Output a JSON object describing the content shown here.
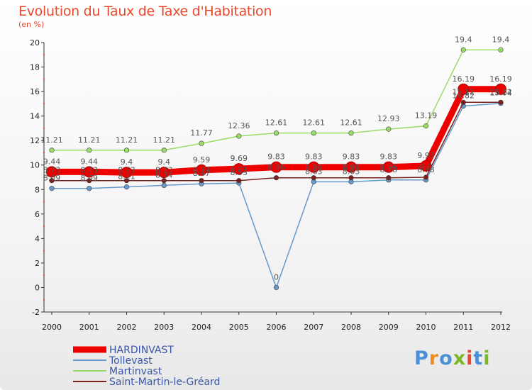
{
  "chart_data": {
    "type": "line",
    "title": "Evolution du Taux de Taxe d'Habitation",
    "subtitle": "(en %)",
    "x": [
      "2000",
      "2001",
      "2002",
      "2003",
      "2004",
      "2005",
      "2006",
      "2007",
      "2008",
      "2009",
      "2010",
      "2011",
      "2012"
    ],
    "ylim": [
      -2,
      20
    ],
    "yticks": [
      "-2",
      "0",
      "2",
      "4",
      "6",
      "8",
      "10",
      "12",
      "14",
      "16",
      "18",
      "20"
    ],
    "grid": false,
    "legend_position": "bottom-left",
    "series": [
      {
        "name": "HARDINVAST",
        "color": "#ee0000",
        "values": [
          9.44,
          9.44,
          9.4,
          9.4,
          9.59,
          9.69,
          9.83,
          9.83,
          9.83,
          9.83,
          9.93,
          16.19,
          16.19
        ],
        "labels": [
          "9.44",
          "9.44",
          "9.4",
          "9.4",
          "9.59",
          "9.69",
          "9.83",
          "9.83",
          "9.83",
          "9.83",
          "9.93",
          "16.19",
          "16.19"
        ]
      },
      {
        "name": "Tollevast",
        "color": "#6699cc",
        "values": [
          8.09,
          8.09,
          8.21,
          8.34,
          8.47,
          8.53,
          0,
          8.63,
          8.63,
          8.78,
          8.78,
          14.82,
          15.04
        ],
        "labels": [
          "8.09",
          "8.09",
          "8.21",
          "8.34",
          "8.47",
          "8.53",
          "0",
          "8.63",
          "8.63",
          "8.78",
          "8.78",
          "14.82",
          "15.04"
        ]
      },
      {
        "name": "Martinvast",
        "color": "#99dd66",
        "values": [
          11.21,
          11.21,
          11.21,
          11.21,
          11.77,
          12.36,
          12.61,
          12.61,
          12.61,
          12.93,
          13.19,
          19.4,
          19.4
        ],
        "labels": [
          "11.21",
          "11.21",
          "11.21",
          "11.21",
          "11.77",
          "12.36",
          "12.61",
          "12.61",
          "12.61",
          "12.93",
          "13.19",
          "19.4",
          "19.4"
        ]
      },
      {
        "name": "Saint-Martin-le-Gréard",
        "color": "#7a2020",
        "values": [
          8.73,
          8.73,
          8.73,
          8.73,
          8.73,
          8.73,
          8.96,
          8.96,
          8.96,
          8.96,
          9.0,
          15.12,
          15.12
        ],
        "labels": [
          "8.73",
          "8.73",
          "8.73",
          "8.73",
          "8.73",
          "8.73",
          "8.96",
          "8.96",
          "8.96",
          "8.96",
          "9.0",
          "15.12",
          "15.12"
        ]
      }
    ]
  },
  "logo": {
    "text": "Proxiti"
  }
}
